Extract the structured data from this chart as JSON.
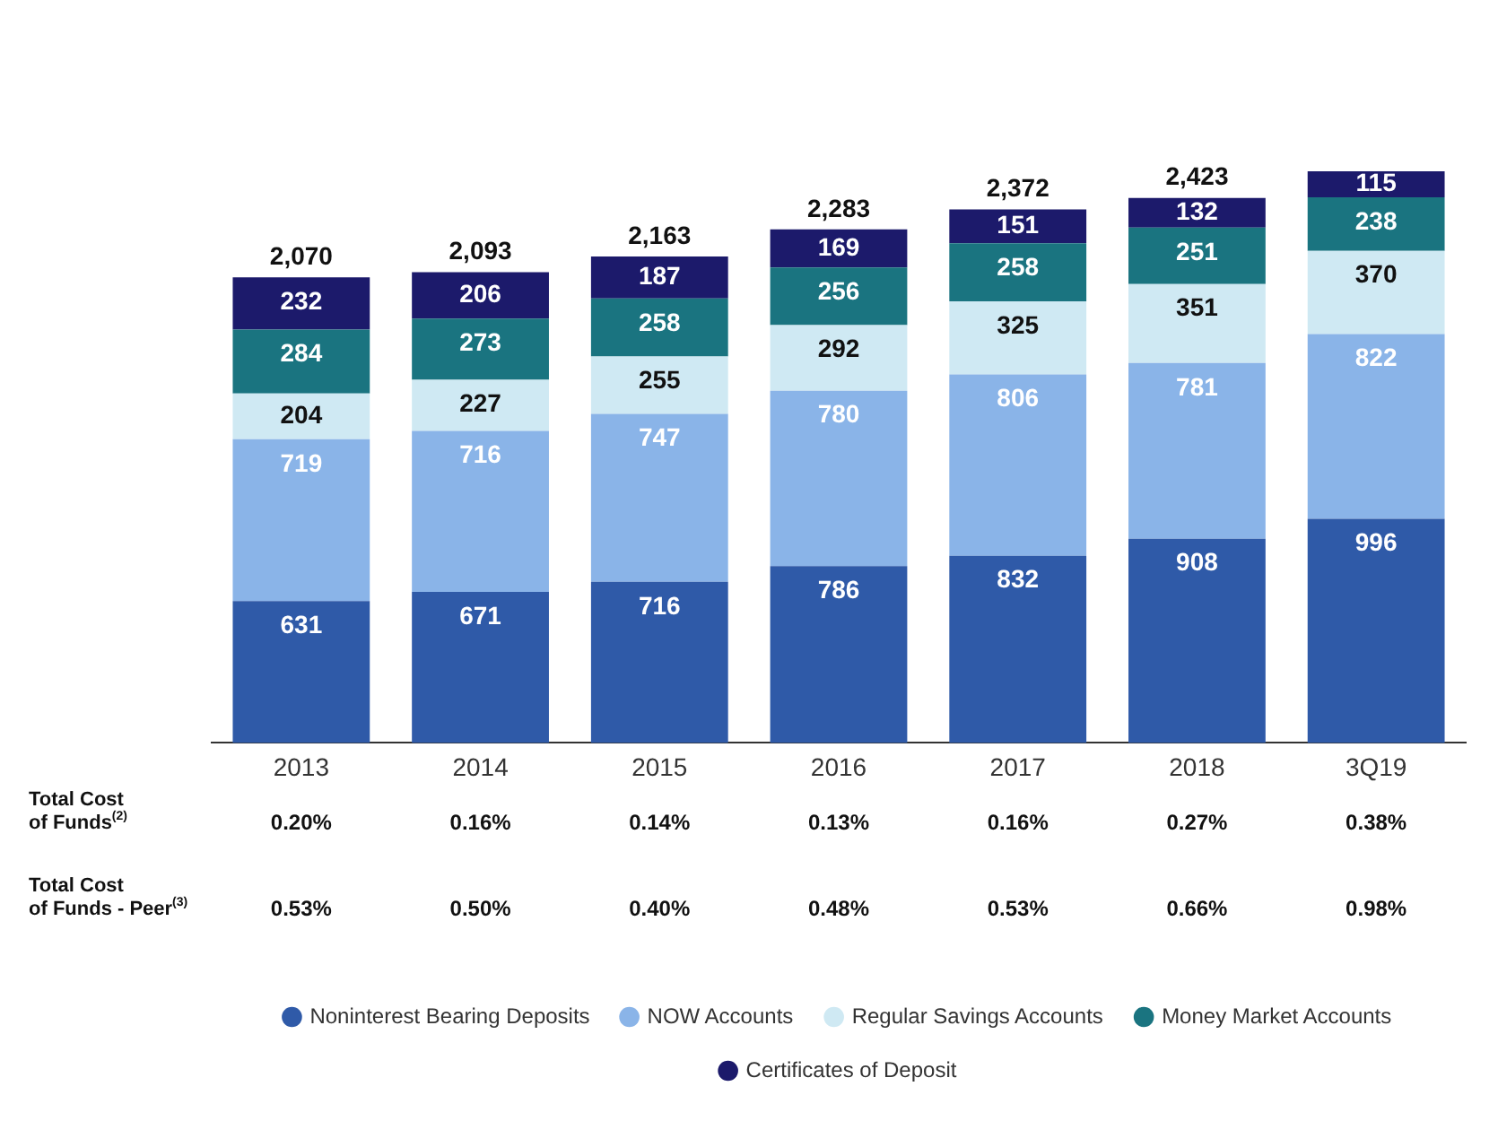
{
  "chart_data": {
    "type": "bar",
    "stacked": true,
    "data_labels": true,
    "legend": "bottom",
    "categories": [
      "2013",
      "2014",
      "2015",
      "2016",
      "2017",
      "2018",
      "3Q19"
    ],
    "series": [
      {
        "name": "Noninterest Bearing Deposits",
        "color": "#2f5aa8",
        "values": [
          631,
          671,
          716,
          786,
          832,
          908,
          996
        ]
      },
      {
        "name": "NOW Accounts",
        "color": "#8ab4e8",
        "values": [
          719,
          716,
          747,
          780,
          806,
          781,
          822
        ]
      },
      {
        "name": "Regular Savings Accounts",
        "color": "#cfe9f3",
        "values": [
          204,
          227,
          255,
          292,
          325,
          351,
          370
        ]
      },
      {
        "name": "Money Market Accounts",
        "color": "#1a7480",
        "values": [
          284,
          273,
          258,
          256,
          258,
          251,
          238
        ]
      },
      {
        "name": "Certificates of Deposit",
        "color": "#1c1a6b",
        "values": [
          232,
          206,
          187,
          169,
          151,
          132,
          115
        ]
      }
    ],
    "totals": [
      "2,070",
      "2,093",
      "2,163",
      "2,283",
      "2,372",
      "2,423",
      null
    ],
    "annotations": [
      "Total Cost of Funds$^{(2)}$",
      "0.20%",
      "0.16%",
      "0.14%",
      "0.13%",
      "0.16%",
      "0.27%",
      "0.38%",
      "Total Cost of Funds - Peer$^{(3)}$",
      "0.53%",
      "0.50%",
      "0.40%",
      "0.48%",
      "0.53%",
      "0.66%",
      "0.98%"
    ]
  }
}
